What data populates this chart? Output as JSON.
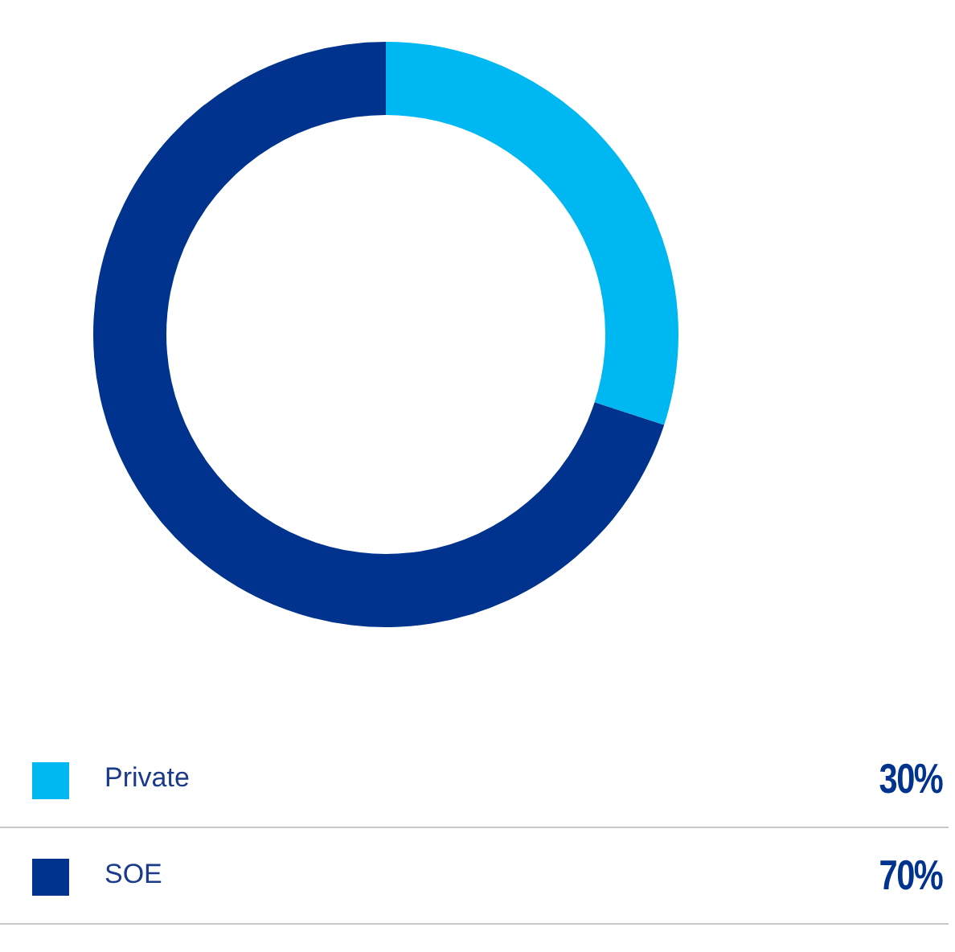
{
  "chart_data": {
    "type": "donut",
    "categories": [
      "Private",
      "SOE"
    ],
    "values": [
      30,
      70
    ],
    "colors": [
      "#00b8f1",
      "#00338d"
    ],
    "value_labels": [
      "30%",
      "70%"
    ],
    "legend": "bottom"
  }
}
